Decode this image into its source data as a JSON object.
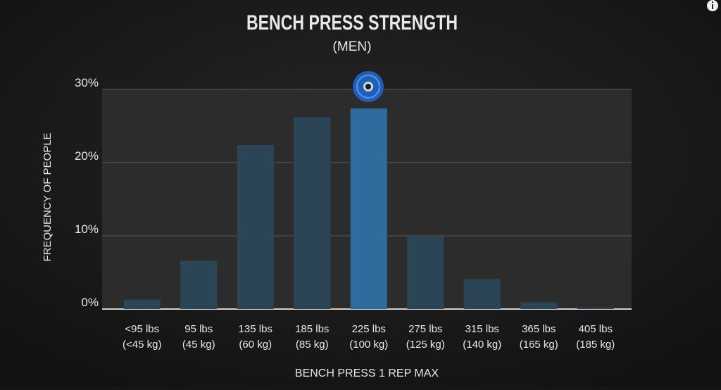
{
  "chart_data": {
    "type": "bar",
    "title": "BENCH PRESS STRENGTH",
    "subtitle": "(MEN)",
    "y_label": "FREQUENCY OF PEOPLE",
    "x_label": "BENCH PRESS 1 REP MAX",
    "categories": [
      "<95 lbs",
      "95 lbs",
      "135 lbs",
      "185 lbs",
      "225 lbs",
      "275 lbs",
      "315 lbs",
      "365 lbs",
      "405 lbs"
    ],
    "category_kg": [
      "(<45 kg)",
      "(45 kg)",
      "(60 kg)",
      "(85 kg)",
      "(100 kg)",
      "(125 kg)",
      "(140 kg)",
      "(165 kg)",
      "(185 kg)"
    ],
    "values": [
      1.3,
      6.6,
      22.4,
      26.2,
      27.4,
      9.9,
      4.1,
      0.9,
      0.2
    ],
    "colors": [
      "#2b4456",
      "#2b4456",
      "#2b4456",
      "#2b4456",
      "#2f6c9e",
      "#2b4456",
      "#2b4456",
      "#2b4456",
      "#2b4456"
    ],
    "ylim": [
      0,
      30
    ],
    "yticks": [
      {
        "value": 0,
        "label": "0%"
      },
      {
        "value": 10,
        "label": "10%"
      },
      {
        "value": 20,
        "label": "20%"
      },
      {
        "value": 30,
        "label": "30%"
      }
    ],
    "grid": true
  }
}
